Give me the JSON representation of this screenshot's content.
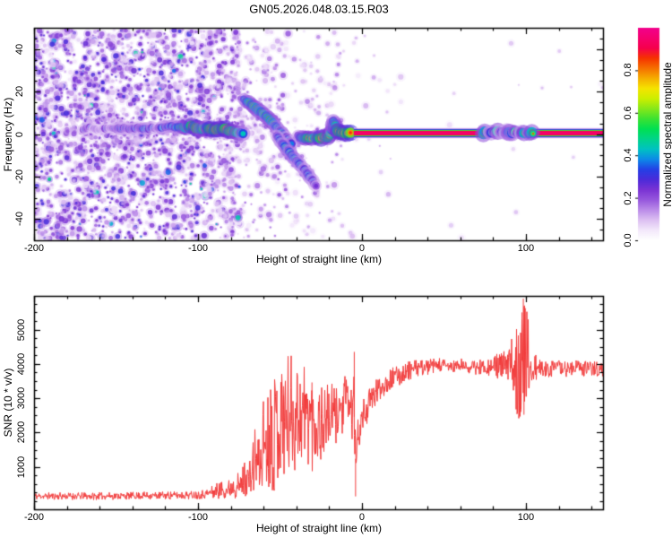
{
  "title": "GN05.2026.048.03.15.R03",
  "palette": {
    "background": "#ffffff",
    "axis_color": "#000000",
    "snr_line_color": "#f13a3a",
    "colormap": [
      "#ffffff",
      "#f3e8fb",
      "#ddc0f2",
      "#bb8ce9",
      "#9657dd",
      "#7a33d4",
      "#4b2bd9",
      "#2440e6",
      "#0d8ae8",
      "#00c2c2",
      "#00d48a",
      "#00e052",
      "#3ce232",
      "#86e81a",
      "#ccef00",
      "#f5e400",
      "#f5ae00",
      "#f57000",
      "#f53300",
      "#f5004d",
      "#f5006e",
      "#f2008c"
    ]
  },
  "top_panel": {
    "ylabel": "Frequency (Hz)",
    "xlabel": "Height of straight line (km)",
    "xlim": [
      -200,
      147
    ],
    "ylim": [
      -50,
      50
    ],
    "xticks": [
      -200,
      -100,
      0,
      100
    ],
    "xtick_labels": [
      "-200",
      "-100",
      "0",
      "100"
    ],
    "x_minor_step": 20,
    "yticks": [
      -40,
      -20,
      0,
      20,
      40
    ],
    "ytick_labels": [
      "-40",
      "-20",
      "0",
      "20",
      "40"
    ],
    "y_minor_step": 5
  },
  "colorbar": {
    "label": "Normalized spectral amplitude",
    "lim": [
      0,
      1
    ],
    "ticks": [
      0.0,
      0.2,
      0.4,
      0.6,
      0.8
    ],
    "tick_labels": [
      "0.0",
      "0.2",
      "0.4",
      "0.6",
      "0.8"
    ]
  },
  "bottom_panel": {
    "ylabel": "SNR (10 * v/v)",
    "xlabel": "Height of straight line (km)",
    "xlim": [
      -200,
      147
    ],
    "ylim": [
      -235,
      5980
    ],
    "xticks": [
      -200,
      -100,
      0,
      100
    ],
    "xtick_labels": [
      "-200",
      "-100",
      "0",
      "100"
    ],
    "x_minor_step": 20,
    "yticks": [
      1000,
      2000,
      3000,
      4000,
      5000
    ],
    "ytick_labels": [
      "1000",
      "2000",
      "3000",
      "4000",
      "5000"
    ],
    "y_minor_step": 250
  },
  "chart_data": [
    {
      "type": "heatmap",
      "name": "doppler-spectrogram",
      "value_label": "Normalized spectral amplitude",
      "seed": 7,
      "noise_regions": [
        {
          "km": [
            -200,
            -95
          ],
          "count": 1900,
          "amp": [
            0.05,
            0.3
          ],
          "hot_prob": 0.03,
          "hot_amp": [
            0.3,
            0.48
          ],
          "banded": 0.25
        },
        {
          "km": [
            -95,
            -72
          ],
          "count": 430,
          "amp": [
            0.04,
            0.25
          ],
          "hot_prob": 0.02,
          "hot_amp": [
            0.3,
            0.45
          ],
          "banded": 0.75
        },
        {
          "km": [
            -72,
            -45
          ],
          "count": 240,
          "amp": [
            0.04,
            0.2
          ],
          "hot_prob": 0.01,
          "hot_amp": [
            0.3,
            0.4
          ],
          "banded": 0.8
        },
        {
          "km": [
            -45,
            -12
          ],
          "count": 115,
          "amp": [
            0.04,
            0.16
          ],
          "hot_prob": 0.0,
          "hot_amp": [
            0,
            0
          ],
          "banded": 0.6
        },
        {
          "km": [
            -12,
            20
          ],
          "count": 28,
          "amp": [
            0.04,
            0.12
          ],
          "hot_prob": 0.0,
          "hot_amp": [
            0,
            0
          ],
          "banded": 0.3
        },
        {
          "km": [
            20,
            147
          ],
          "count": 16,
          "amp": [
            0.03,
            0.1
          ],
          "hot_prob": 0.0,
          "hot_amp": [
            0,
            0
          ],
          "banded": 0.0
        }
      ],
      "trace_segments": [
        {
          "name": "main-trace-left",
          "points": [
            [
              -170,
              2.5,
              0.35
            ],
            [
              -166,
              3,
              0.3
            ],
            [
              -160,
              2,
              0.25
            ],
            [
              -155,
              3,
              0.3
            ],
            [
              -150,
              2.5,
              0.35
            ],
            [
              -145,
              3,
              0.4
            ],
            [
              -140,
              2.5,
              0.35
            ],
            [
              -135,
              3,
              0.45
            ],
            [
              -130,
              2.5,
              0.4
            ],
            [
              -126,
              3,
              0.35
            ],
            [
              -122,
              3,
              0.45
            ],
            [
              -118,
              3.5,
              0.5
            ],
            [
              -114,
              3,
              0.55
            ],
            [
              -110,
              3.5,
              0.6
            ],
            [
              -107,
              3,
              0.7
            ],
            [
              -104,
              3.5,
              0.8
            ],
            [
              -101,
              3,
              0.85
            ],
            [
              -98,
              2.5,
              0.75
            ],
            [
              -95,
              3,
              0.65
            ],
            [
              -92,
              2.5,
              0.85
            ],
            [
              -89,
              2,
              0.9
            ],
            [
              -86,
              2.5,
              0.8
            ],
            [
              -83,
              2,
              0.85
            ],
            [
              -80,
              1.5,
              0.75
            ],
            [
              -77,
              1,
              0.8
            ],
            [
              -74,
              0.5,
              0.6
            ],
            [
              -71,
              0,
              0.5
            ]
          ]
        },
        {
          "name": "descending-branch-upper",
          "points": [
            [
              -72,
              16,
              0.45
            ],
            [
              -69,
              14.5,
              0.6
            ],
            [
              -66,
              13,
              0.75
            ],
            [
              -63,
              11,
              0.7
            ],
            [
              -60,
              9,
              0.65
            ],
            [
              -57,
              7,
              0.7
            ],
            [
              -54,
              5,
              0.6
            ],
            [
              -51,
              2.5,
              0.55
            ],
            [
              -48,
              0,
              0.5
            ],
            [
              -45,
              -2.5,
              0.45
            ],
            [
              -42,
              -5,
              0.4
            ]
          ]
        },
        {
          "name": "descending-branch-lower",
          "points": [
            [
              -52,
              -1,
              0.45
            ],
            [
              -49,
              -4,
              0.5
            ],
            [
              -46,
              -7,
              0.55
            ],
            [
              -43,
              -10,
              0.5
            ],
            [
              -40,
              -12.5,
              0.55
            ],
            [
              -37,
              -15,
              0.45
            ],
            [
              -34,
              -18,
              0.5
            ],
            [
              -31,
              -21,
              0.4
            ],
            [
              -29,
              -23.5,
              0.35
            ],
            [
              -27,
              -26,
              0.25
            ]
          ]
        },
        {
          "name": "main-trace-center",
          "points": [
            [
              -39,
              -1,
              0.5
            ],
            [
              -36,
              -2,
              0.65
            ],
            [
              -33,
              -1.5,
              0.75
            ],
            [
              -31,
              -2.5,
              0.8
            ],
            [
              -29,
              -2,
              0.75
            ],
            [
              -27,
              -1.5,
              0.85
            ],
            [
              -25,
              -2,
              0.9
            ],
            [
              -23,
              -1,
              0.85
            ],
            [
              -21,
              -1.5,
              0.8
            ],
            [
              -19,
              0.5,
              0.7
            ],
            [
              -17.5,
              6,
              0.55
            ],
            [
              -16,
              3,
              0.75
            ],
            [
              -14.5,
              1,
              0.85
            ],
            [
              -13,
              0.5,
              0.9
            ],
            [
              -11,
              0.5,
              0.92
            ],
            [
              -9,
              0.5,
              0.95
            ],
            [
              -7,
              0.5,
              0.95
            ],
            [
              -5,
              0.6,
              0.97
            ]
          ]
        }
      ],
      "halos": [
        {
          "seg": 0,
          "count": 340,
          "sigma_hz": 6.5,
          "amp": [
            0.05,
            0.25
          ]
        },
        {
          "seg": 1,
          "count": 120,
          "sigma_hz": 5.0,
          "amp": [
            0.05,
            0.22
          ]
        },
        {
          "seg": 2,
          "count": 150,
          "sigma_hz": 5.0,
          "amp": [
            0.05,
            0.22
          ]
        },
        {
          "seg": 3,
          "count": 120,
          "sigma_hz": 4.5,
          "amp": [
            0.05,
            0.2
          ]
        }
      ],
      "carrier_stripe": {
        "km_from": -5,
        "km_to": 147,
        "hz": 0.6,
        "rows": [
          [
            0,
            0.96
          ],
          [
            1,
            0.94
          ],
          [
            -1,
            0.94
          ],
          [
            2,
            0.92
          ],
          [
            -2,
            0.92
          ],
          [
            3,
            0.58
          ],
          [
            -3,
            0.58
          ],
          [
            4,
            0.32
          ],
          [
            -4,
            0.32
          ],
          [
            5,
            0.15
          ],
          [
            -5,
            0.15
          ],
          [
            6,
            0.06
          ],
          [
            -6,
            0.06
          ]
        ],
        "bumps": [
          {
            "km_from": 74,
            "km_to": 105,
            "strength": 1.0
          }
        ]
      }
    },
    {
      "type": "line",
      "name": "snr-profile",
      "seed": 11,
      "anchors": [
        [
          -200,
          150,
          110
        ],
        [
          -180,
          150,
          110
        ],
        [
          -160,
          150,
          110
        ],
        [
          -140,
          160,
          110
        ],
        [
          -120,
          170,
          120
        ],
        [
          -105,
          180,
          120
        ],
        [
          -95,
          220,
          150
        ],
        [
          -90,
          280,
          220
        ],
        [
          -86,
          350,
          280
        ],
        [
          -82,
          330,
          260
        ],
        [
          -78,
          500,
          420
        ],
        [
          -74,
          420,
          380
        ],
        [
          -71,
          800,
          650
        ],
        [
          -68,
          650,
          550
        ],
        [
          -65,
          1300,
          1050
        ],
        [
          -62,
          950,
          800
        ],
        [
          -60,
          1900,
          1500
        ],
        [
          -58,
          1500,
          1300
        ],
        [
          -56,
          2300,
          1800
        ],
        [
          -54,
          1900,
          1700
        ],
        [
          -52,
          2400,
          1900
        ],
        [
          -50,
          2100,
          1800
        ],
        [
          -48,
          2700,
          1900
        ],
        [
          -46,
          2300,
          1900
        ],
        [
          -44,
          2600,
          1900
        ],
        [
          -42,
          2400,
          1800
        ],
        [
          -40,
          2700,
          1700
        ],
        [
          -38,
          2500,
          1700
        ],
        [
          -36,
          2600,
          1600
        ],
        [
          -34,
          2500,
          1600
        ],
        [
          -32,
          2600,
          1500
        ],
        [
          -30,
          2300,
          1500
        ],
        [
          -28,
          2200,
          1400
        ],
        [
          -26,
          2400,
          1200
        ],
        [
          -24,
          2200,
          1200
        ],
        [
          -22,
          2500,
          1000
        ],
        [
          -20,
          2300,
          1000
        ],
        [
          -18,
          2600,
          900
        ],
        [
          -16,
          2400,
          900
        ],
        [
          -14,
          2800,
          800
        ],
        [
          -12,
          2600,
          800
        ],
        [
          -10,
          3000,
          700
        ],
        [
          -8,
          2800,
          700
        ],
        [
          -6,
          2600,
          800
        ],
        [
          -5,
          3000,
          900
        ],
        [
          -4,
          1200,
          700
        ],
        [
          -3,
          1600,
          700
        ],
        [
          -2,
          2000,
          600
        ],
        [
          -1,
          2200,
          500
        ],
        [
          0,
          2400,
          500
        ],
        [
          2,
          2600,
          450
        ],
        [
          4,
          2800,
          450
        ],
        [
          6,
          3000,
          400
        ],
        [
          8,
          3100,
          400
        ],
        [
          10,
          3250,
          400
        ],
        [
          13,
          3400,
          350
        ],
        [
          16,
          3500,
          350
        ],
        [
          20,
          3600,
          320
        ],
        [
          24,
          3700,
          300
        ],
        [
          28,
          3800,
          280
        ],
        [
          32,
          3850,
          260
        ],
        [
          36,
          3900,
          240
        ],
        [
          40,
          3900,
          230
        ],
        [
          45,
          3950,
          220
        ],
        [
          50,
          3950,
          220
        ],
        [
          55,
          3900,
          220
        ],
        [
          60,
          3950,
          210
        ],
        [
          65,
          3900,
          210
        ],
        [
          70,
          3900,
          220
        ],
        [
          74,
          3950,
          240
        ],
        [
          78,
          3900,
          280
        ],
        [
          82,
          3950,
          350
        ],
        [
          85,
          3900,
          420
        ],
        [
          88,
          3950,
          550
        ],
        [
          90,
          3900,
          700
        ],
        [
          92,
          3950,
          1000
        ],
        [
          94,
          4000,
          1400
        ],
        [
          96,
          4050,
          1700
        ],
        [
          98,
          4100,
          1850
        ],
        [
          99,
          4100,
          1850
        ],
        [
          100,
          4050,
          1750
        ],
        [
          101,
          4000,
          1500
        ],
        [
          102,
          3950,
          1200
        ],
        [
          103,
          3900,
          900
        ],
        [
          104,
          3850,
          650
        ],
        [
          106,
          3850,
          420
        ],
        [
          108,
          3850,
          300
        ],
        [
          110,
          3850,
          260
        ],
        [
          115,
          3850,
          230
        ],
        [
          120,
          3900,
          230
        ],
        [
          125,
          3850,
          230
        ],
        [
          130,
          3900,
          230
        ],
        [
          135,
          3850,
          240
        ],
        [
          140,
          3900,
          240
        ],
        [
          145,
          3850,
          250
        ],
        [
          147,
          3800,
          260
        ]
      ],
      "spikes": [
        [
          -4.7,
          4350
        ],
        [
          -3.9,
          140
        ],
        [
          -30.5,
          3460
        ],
        [
          -47.9,
          3350
        ],
        [
          96.9,
          2600
        ],
        [
          97.6,
          5500
        ],
        [
          98.4,
          5900
        ],
        [
          98.8,
          2520
        ],
        [
          99.1,
          5700
        ]
      ]
    }
  ]
}
